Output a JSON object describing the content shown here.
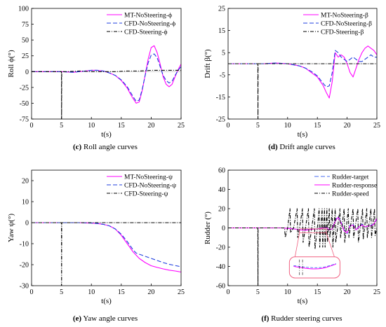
{
  "chart_data": [
    {
      "panel": "c",
      "type": "line",
      "caption_letter": "(c)",
      "caption_text": " Roll angle curves",
      "xlabel": "t(s)",
      "ylabel": "Roll ϕ(°)",
      "xlim": [
        0,
        25
      ],
      "ylim": [
        -75,
        100
      ],
      "xticks": [
        0,
        5,
        10,
        15,
        20,
        25
      ],
      "yticks": [
        -75,
        -50,
        -25,
        0,
        25,
        50,
        75,
        100
      ],
      "legend_position": "top-right",
      "series": [
        {
          "name": "MT-NoSteering-ϕ",
          "color": "#ff00ff",
          "style": "solid",
          "x": [
            0,
            5,
            7,
            9,
            10,
            11,
            12,
            13,
            14,
            15,
            16,
            16.5,
            17,
            17.5,
            18,
            18.5,
            19,
            19.5,
            20,
            20.5,
            21,
            21.5,
            22,
            22.5,
            23,
            23.5,
            24,
            24.5,
            25
          ],
          "y": [
            0,
            0,
            -1,
            1,
            2,
            2,
            1,
            -2,
            -6,
            -14,
            -26,
            -35,
            -43,
            -50,
            -48,
            -30,
            -5,
            20,
            38,
            41,
            30,
            12,
            -8,
            -20,
            -24,
            -20,
            -8,
            3,
            12
          ]
        },
        {
          "name": "CFD-NoSteering-ϕ",
          "color": "#1f3fdf",
          "style": "dashed",
          "x": [
            0,
            5,
            7,
            9,
            10,
            11,
            12,
            13,
            14,
            15,
            16,
            16.5,
            17,
            17.5,
            18,
            18.5,
            19,
            19.5,
            20,
            20.5,
            21,
            21.5,
            22,
            22.5,
            23,
            23.5,
            24,
            24.5,
            25
          ],
          "y": [
            0,
            0,
            -1,
            1,
            2,
            2,
            1,
            -2,
            -6,
            -13,
            -24,
            -32,
            -40,
            -47,
            -45,
            -28,
            -6,
            14,
            26,
            28,
            22,
            8,
            -6,
            -14,
            -18,
            -15,
            -6,
            2,
            8
          ]
        },
        {
          "name": "CFD-Steering-ϕ",
          "color": "#000000",
          "style": "dashdot",
          "x": [
            0,
            5,
            5.02,
            5.04,
            6,
            8,
            10,
            12,
            14,
            16,
            18,
            20,
            22,
            24,
            25
          ],
          "y": [
            0,
            0,
            -75,
            0,
            0,
            1,
            0,
            0,
            0,
            1,
            1,
            2,
            2,
            2,
            2
          ]
        }
      ]
    },
    {
      "panel": "d",
      "type": "line",
      "caption_letter": "(d)",
      "caption_text": " Drift angle curves",
      "xlabel": "t(s)",
      "ylabel": "Drift β(°)",
      "xlim": [
        0,
        25
      ],
      "ylim": [
        -25,
        25
      ],
      "xticks": [
        0,
        5,
        10,
        15,
        20,
        25
      ],
      "yticks": [
        -25,
        -15,
        -5,
        5,
        15,
        25
      ],
      "legend_position": "top-right",
      "series": [
        {
          "name": "MT-NoSteering-β",
          "color": "#ff00ff",
          "style": "solid",
          "x": [
            0,
            5,
            6,
            8,
            10,
            11,
            12,
            13,
            14,
            15,
            16,
            16.5,
            17,
            17.5,
            18,
            18.5,
            19,
            19.5,
            20,
            20.5,
            21,
            21.5,
            22,
            22.5,
            23,
            23.5,
            24,
            24.5,
            25
          ],
          "y": [
            0,
            0,
            0,
            0.3,
            0,
            -0.5,
            -1,
            -2,
            -4,
            -6,
            -10,
            -13,
            -15.5,
            -8,
            5,
            3,
            4,
            3,
            0,
            -4,
            -6,
            -2,
            2,
            5,
            7,
            8,
            7,
            6,
            4
          ]
        },
        {
          "name": "CFD-NoSteering-β",
          "color": "#1f3fdf",
          "style": "dashed",
          "x": [
            0,
            5,
            6,
            8,
            10,
            11,
            12,
            13,
            14,
            15,
            16,
            16.5,
            17,
            17.5,
            18,
            18.5,
            19,
            19.5,
            20,
            20.5,
            21,
            21.5,
            22,
            22.5,
            23,
            23.5,
            24,
            24.5,
            25
          ],
          "y": [
            0,
            0,
            0,
            0.3,
            0,
            -0.5,
            -1,
            -2,
            -3.5,
            -5.5,
            -9,
            -10.5,
            -10,
            -4,
            6,
            5,
            3,
            2,
            1,
            2,
            3,
            2,
            1,
            1,
            2,
            3,
            4,
            3,
            3
          ]
        },
        {
          "name": "CFD-Steering-β",
          "color": "#000000",
          "style": "dashdot",
          "x": [
            0,
            5,
            5.02,
            5.04,
            6,
            8,
            10,
            12,
            14,
            16,
            18,
            20,
            22,
            24,
            25
          ],
          "y": [
            0,
            0,
            -25,
            0,
            0,
            0,
            0,
            0,
            0,
            0,
            0,
            0,
            0,
            0,
            0
          ]
        }
      ]
    },
    {
      "panel": "e",
      "type": "line",
      "caption_letter": "(e)",
      "caption_text": " Yaw angle curves",
      "xlabel": "t(s)",
      "ylabel": "Yaw ψ(°)",
      "xlim": [
        0,
        25
      ],
      "ylim": [
        -30,
        25
      ],
      "xticks": [
        0,
        5,
        10,
        15,
        20,
        25
      ],
      "yticks": [
        -30,
        -20,
        -10,
        0,
        10,
        20
      ],
      "legend_position": "top-right",
      "series": [
        {
          "name": "MT-NoSteering-ψ",
          "color": "#ff00ff",
          "style": "solid",
          "x": [
            0,
            5,
            8,
            10,
            11,
            12,
            13,
            14,
            15,
            16,
            17,
            17.5,
            18,
            19,
            20,
            21,
            22,
            23,
            24,
            25
          ],
          "y": [
            0,
            0,
            0,
            -0.2,
            -0.4,
            -0.8,
            -1.5,
            -3,
            -6,
            -10,
            -14,
            -15.5,
            -17,
            -19,
            -20.5,
            -21.3,
            -22,
            -22.6,
            -23,
            -23.5
          ]
        },
        {
          "name": "CFD-NoSteering-ψ",
          "color": "#1f3fdf",
          "style": "dashed",
          "x": [
            0,
            5,
            8,
            10,
            11,
            12,
            13,
            14,
            15,
            16,
            17,
            17.5,
            18,
            19,
            20,
            21,
            22,
            23,
            24,
            25
          ],
          "y": [
            0,
            0,
            0,
            -0.2,
            -0.4,
            -0.8,
            -1.5,
            -3,
            -5.5,
            -9,
            -13,
            -14.5,
            -15,
            -16,
            -17,
            -18,
            -19,
            -19.8,
            -20.4,
            -21
          ]
        },
        {
          "name": "CFD-Steering-ψ",
          "color": "#000000",
          "style": "dashdot",
          "x": [
            0,
            5,
            5.02,
            5.04,
            6,
            10,
            15,
            20,
            25
          ],
          "y": [
            0,
            0,
            -30,
            0,
            0,
            0,
            0,
            0,
            0
          ]
        }
      ]
    },
    {
      "panel": "f",
      "type": "line",
      "caption_letter": "(f)",
      "caption_text": " Rudder steering curves",
      "xlabel": "t(s)",
      "ylabel": "Rudder (°)",
      "xlim": [
        0,
        25
      ],
      "ylim": [
        -60,
        60
      ],
      "xticks": [
        0,
        5,
        10,
        15,
        20,
        25
      ],
      "yticks": [
        -60,
        -40,
        -20,
        0,
        20,
        40,
        60
      ],
      "legend_position": "top-right",
      "series": [
        {
          "name": "Rudder-target",
          "color": "#4a6cf0",
          "style": "dashed",
          "x": [
            0,
            5,
            9,
            10,
            11,
            12,
            13,
            14,
            15,
            16,
            16.5,
            17,
            17.5,
            18,
            18.5,
            19,
            19.5,
            20,
            20.5,
            21,
            21.5,
            22,
            22.5,
            23,
            23.5,
            24,
            24.5,
            25
          ],
          "y": [
            0,
            0,
            0,
            -0.5,
            -1,
            -2,
            -2,
            -1,
            -1,
            0,
            1,
            -2,
            -1,
            8,
            12,
            6,
            -2,
            -6,
            3,
            4,
            -2,
            2,
            4,
            1,
            2,
            3,
            4,
            9
          ]
        },
        {
          "name": "Rudder-response",
          "color": "#ff00ff",
          "style": "solid",
          "x": [
            0,
            5,
            9,
            10,
            11,
            12,
            13,
            14,
            15,
            16,
            16.5,
            17,
            17.5,
            18,
            18.5,
            19,
            19.5,
            20,
            20.5,
            21,
            21.5,
            22,
            22.5,
            23,
            23.5,
            24,
            24.5,
            25
          ],
          "y": [
            0,
            0,
            0,
            -0.5,
            -1,
            -2,
            -2.5,
            -1.5,
            -1,
            0,
            0.5,
            -2,
            -1,
            7,
            11,
            5,
            -3,
            -5,
            2,
            3,
            -2,
            1,
            3,
            1,
            2,
            2,
            4,
            10
          ]
        },
        {
          "name": "Rudder-speed",
          "color": "#000000",
          "style": "dashdot",
          "x": [
            0,
            5,
            5.02,
            5.04,
            9,
            9.5,
            9.6,
            10,
            10.4,
            10.5,
            11,
            11.6,
            11.7,
            12,
            12.5,
            12.6,
            13,
            13.5,
            13.6,
            14.5,
            14.6,
            15,
            15.3,
            15.4,
            15.8,
            15.9,
            16.2,
            16.3,
            16.6,
            16.7,
            17,
            17.1,
            17.5,
            17.6,
            18,
            18.1,
            18.8,
            18.9,
            19.5,
            19.6,
            20.2,
            20.3,
            21,
            21.1,
            21.8,
            21.9,
            22.6,
            22.7,
            23.3,
            23.4,
            24,
            24.1,
            24.6,
            24.7,
            25
          ],
          "y": [
            0,
            0,
            -60,
            0,
            0,
            0,
            -10,
            0,
            20,
            -5,
            0,
            20,
            -10,
            0,
            20,
            -15,
            0,
            20,
            -20,
            20,
            -22,
            0,
            20,
            -20,
            20,
            -20,
            20,
            -20,
            20,
            -15,
            20,
            -10,
            20,
            -20,
            20,
            -15,
            20,
            -10,
            20,
            -15,
            20,
            -10,
            20,
            -10,
            20,
            -15,
            20,
            -12,
            20,
            -10,
            20,
            -10,
            20,
            -8,
            0
          ]
        }
      ]
    }
  ]
}
